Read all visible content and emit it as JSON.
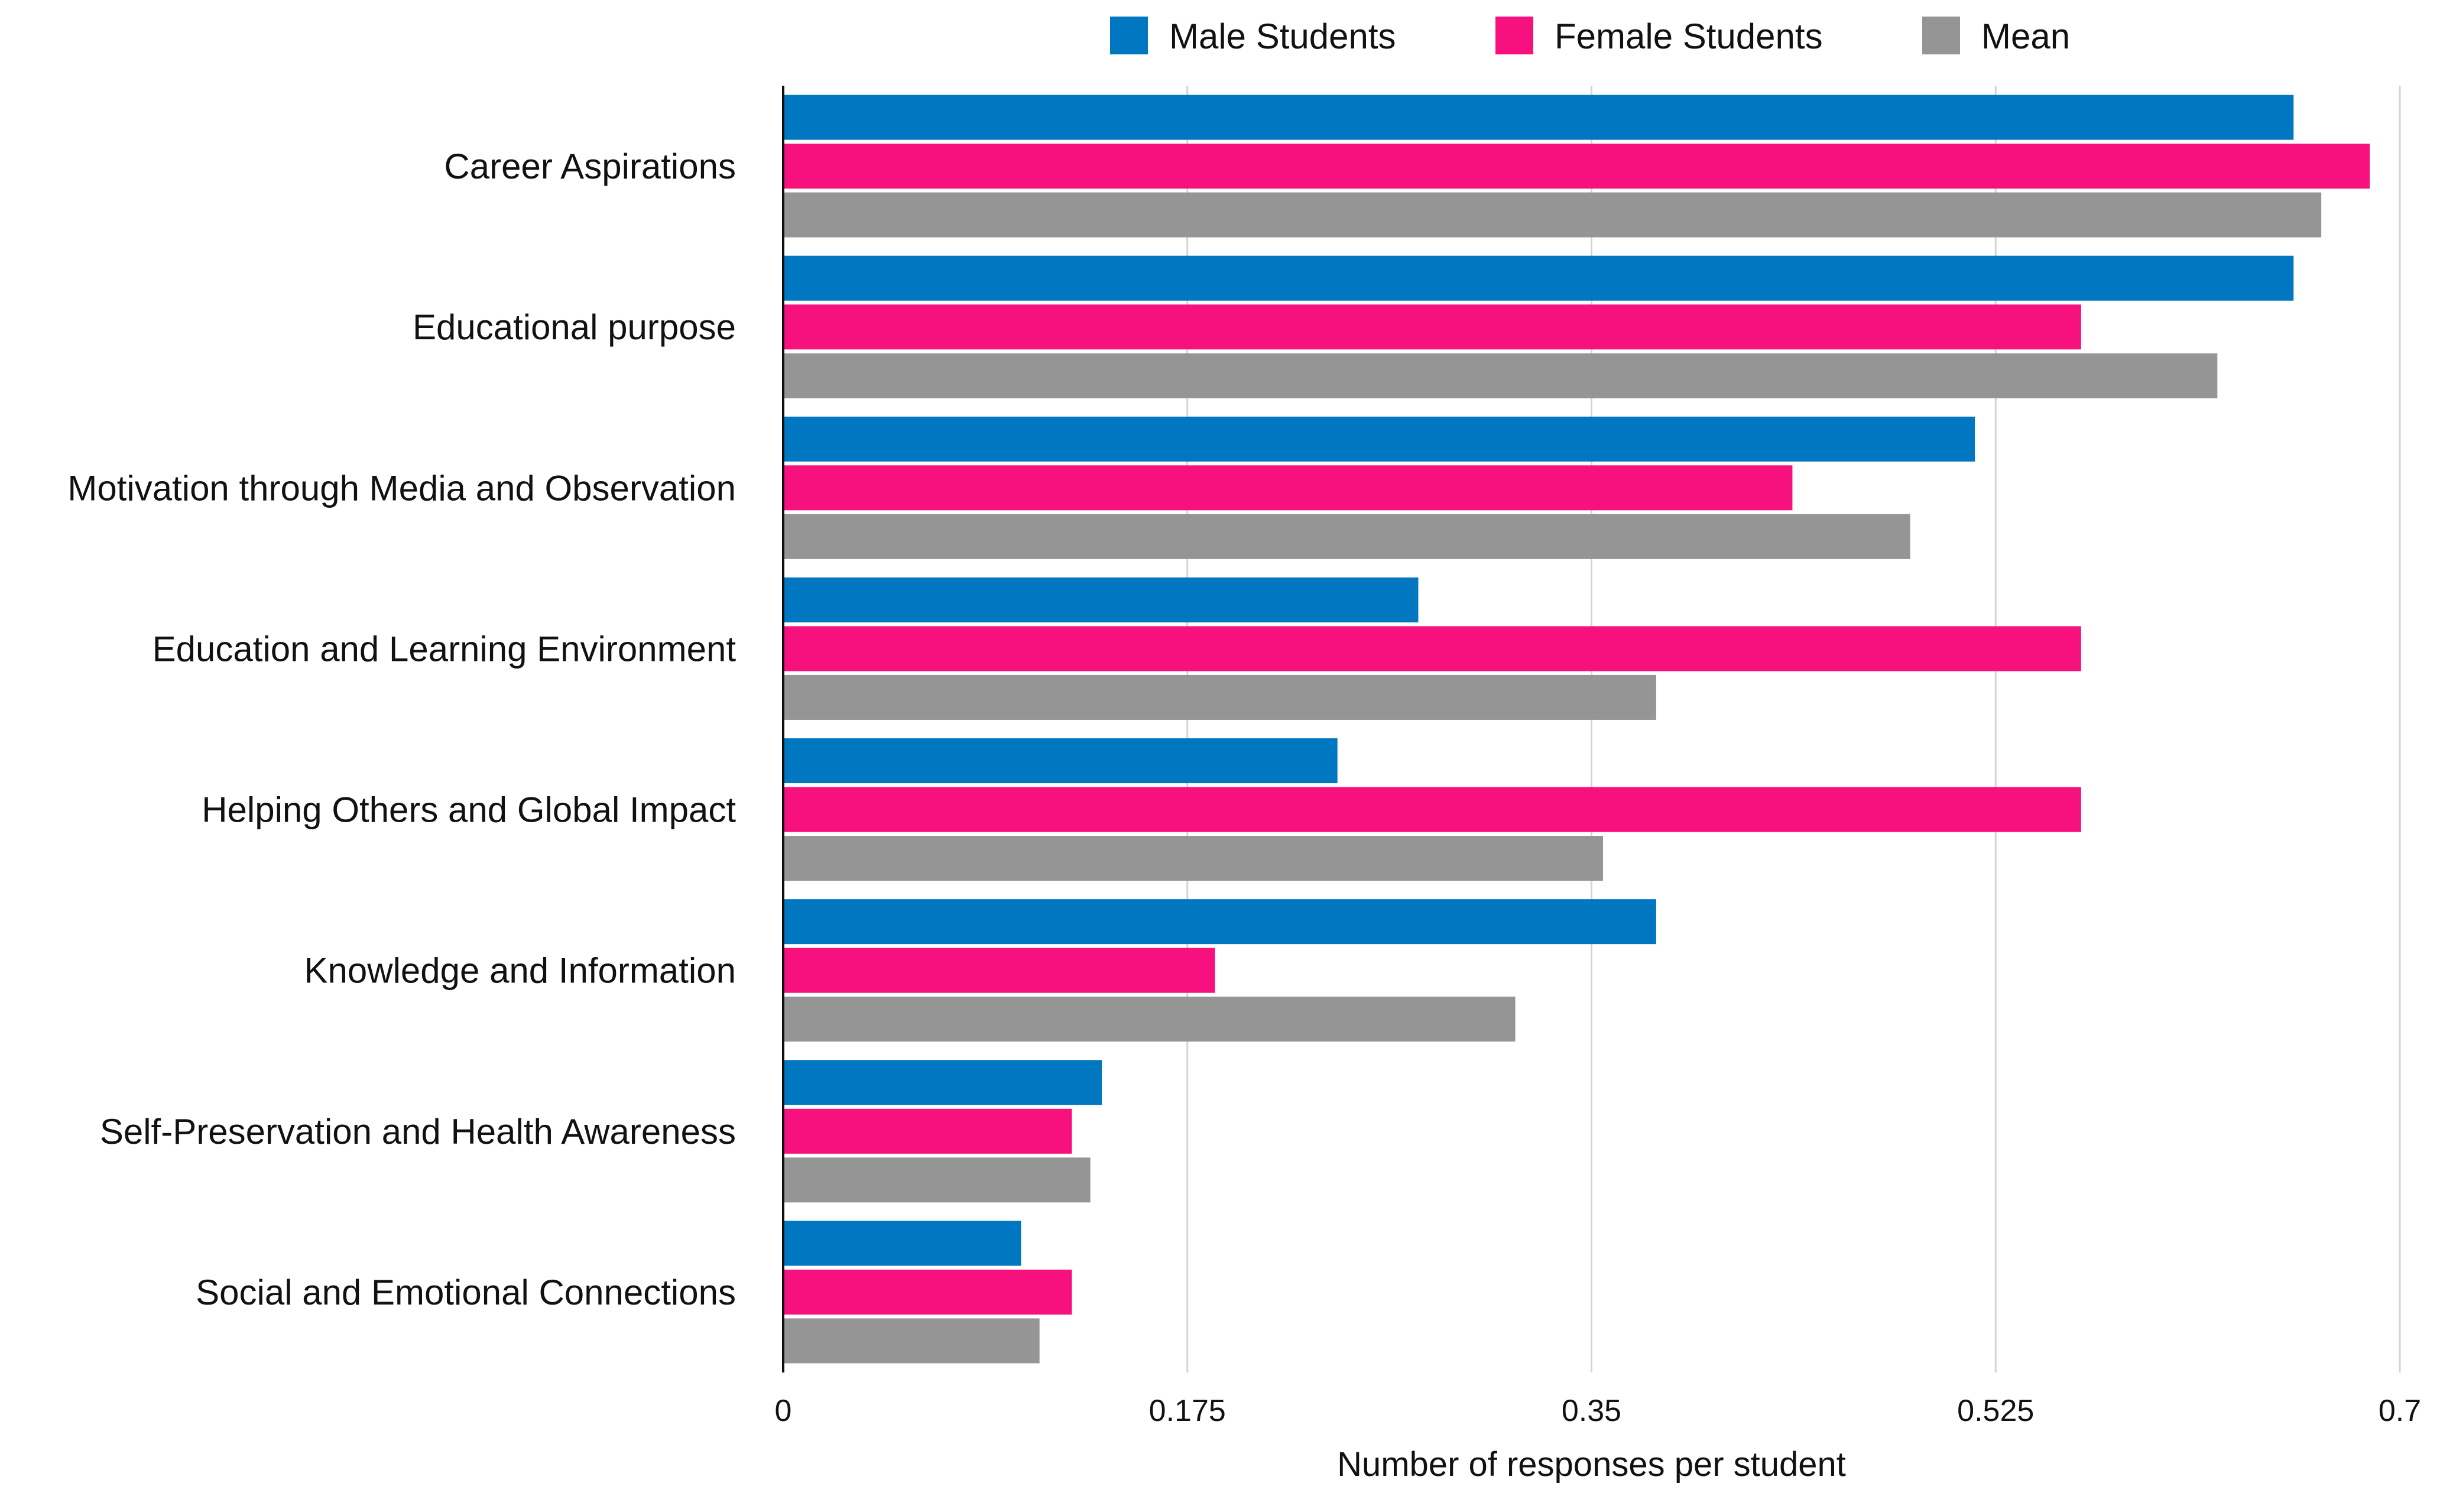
{
  "chart_data": {
    "type": "bar",
    "orientation": "horizontal",
    "title": "",
    "xlabel": "Number of responses per student",
    "ylabel": "",
    "xlim": [
      0,
      0.7
    ],
    "xticks": [
      0,
      0.175,
      0.35,
      0.525,
      0.7
    ],
    "xtick_labels": [
      "0",
      "0.175",
      "0.35",
      "0.525",
      "0.7"
    ],
    "grid": "vertical",
    "legend_position": "top",
    "categories": [
      "Career Aspirations",
      "Educational purpose",
      "Motivation through Media and Observation",
      "Education and Learning Environment",
      "Helping Others and Global Impact",
      "Knowledge and Information",
      "Self-Preservation and Health Awareness",
      "Social and Emotional Connections"
    ],
    "series": [
      {
        "name": "Male Students",
        "color": "#0077c0",
        "values": [
          0.654,
          0.654,
          0.516,
          0.275,
          0.24,
          0.378,
          0.138,
          0.103
        ]
      },
      {
        "name": "Female Students",
        "color": "#f7117f",
        "values": [
          0.687,
          0.562,
          0.437,
          0.562,
          0.562,
          0.187,
          0.125,
          0.125
        ]
      },
      {
        "name": "Mean",
        "color": "#959595",
        "values": [
          0.666,
          0.621,
          0.488,
          0.378,
          0.355,
          0.317,
          0.133,
          0.111
        ]
      }
    ]
  }
}
